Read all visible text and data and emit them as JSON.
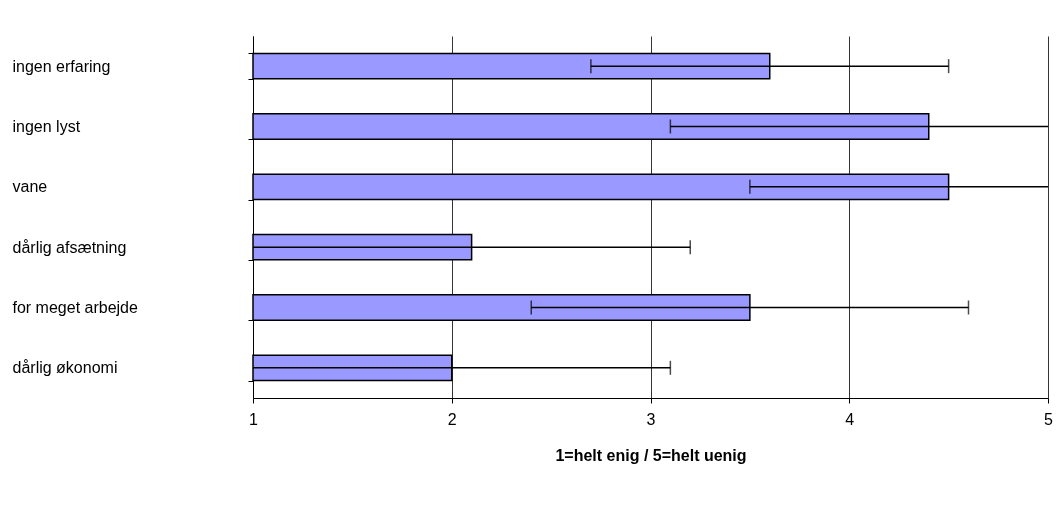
{
  "chart_data": {
    "type": "bar",
    "orientation": "horizontal",
    "categories": [
      "ingen erfaring",
      "ingen lyst",
      "vane",
      "dårlig afsætning",
      "for meget arbejde",
      "dårlig økonomi"
    ],
    "values": [
      3.6,
      4.4,
      4.5,
      2.1,
      3.5,
      2.0
    ],
    "errors": [
      0.9,
      [
        3.1,
        5.0
      ],
      [
        3.5,
        5.0
      ],
      [
        1.0,
        3.2
      ],
      1.1,
      [
        1.0,
        3.1
      ]
    ],
    "color": "#9999ff",
    "xlabel": "1=helt enig / 5=helt uenig",
    "xlim": [
      1,
      5
    ],
    "xticks": [
      1,
      2,
      3,
      4,
      5
    ],
    "grid": "x"
  }
}
